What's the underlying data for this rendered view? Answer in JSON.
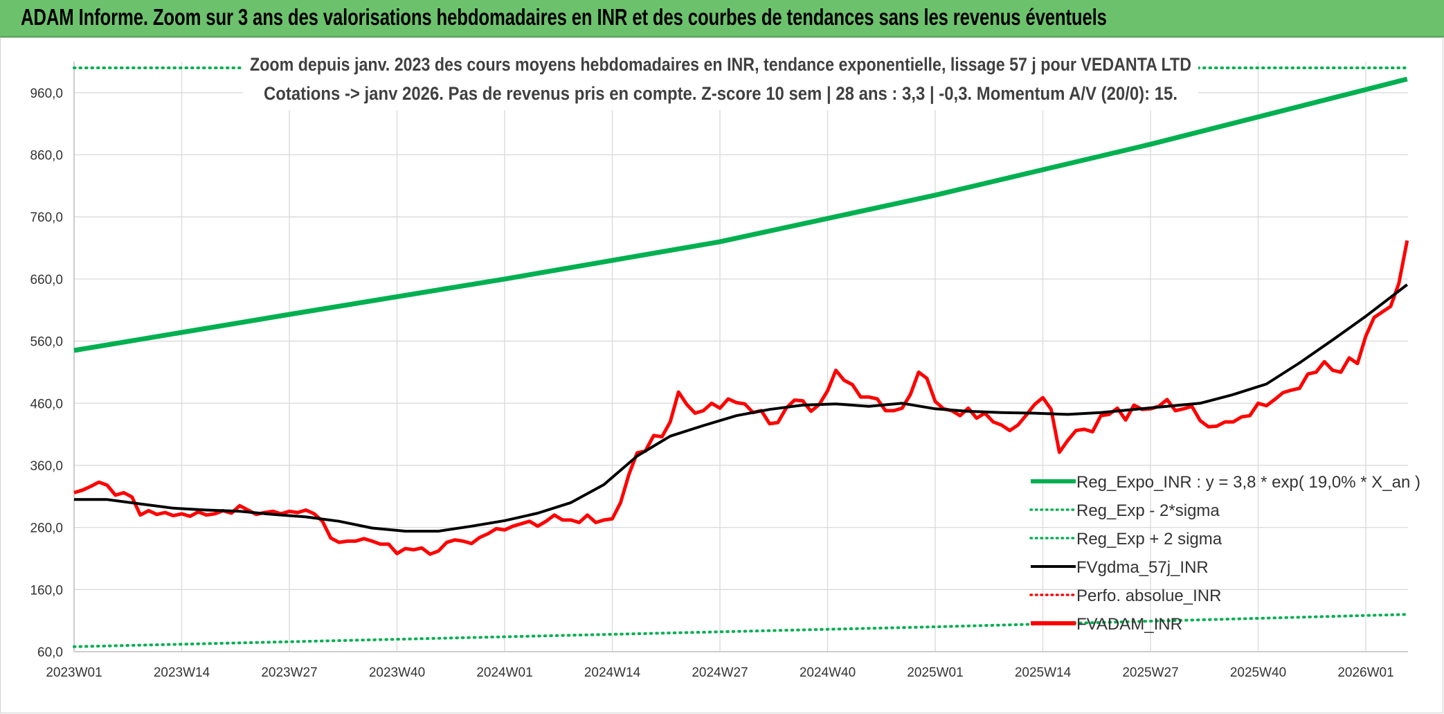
{
  "banner_title": "ADAM Informe. Zoom sur 3 ans des valorisations hebdomadaires en INR et des courbes de tendances sans les revenus éventuels",
  "chart_data": {
    "type": "line",
    "subtitle_line1": "Zoom depuis janv. 2023 des cours moyens hebdomadaires en INR, tendance exponentielle, lissage 57 j pour VEDANTA LTD",
    "subtitle_line2": "Cotations -> janv 2026. Pas de revenus pris en compte. Z-score 10 sem | 28 ans : 3,3 | -0,3. Momentum A/V (20/0): 15.",
    "xlabel": "",
    "ylabel": "",
    "ylim": [
      60,
      1010
    ],
    "y_ticks": [
      "60,0",
      "160,0",
      "260,0",
      "360,0",
      "460,0",
      "560,0",
      "660,0",
      "760,0",
      "860,0",
      "960,0"
    ],
    "y_tick_values": [
      60,
      160,
      260,
      360,
      460,
      560,
      660,
      760,
      860,
      960
    ],
    "x_ticks": [
      "2023W01",
      "2023W14",
      "2023W27",
      "2023W40",
      "2024W01",
      "2024W14",
      "2024W27",
      "2024W40",
      "2025W01",
      "2025W14",
      "2025W27",
      "2025W40",
      "2026W01"
    ],
    "x_tick_weeks": [
      0,
      13,
      26,
      39,
      52,
      65,
      78,
      91,
      104,
      117,
      130,
      143,
      156
    ],
    "x_range_weeks": [
      0,
      161
    ],
    "legend": [
      {
        "label": "Reg_Expo_INR : y = 3,8 * exp( 19,0% *  X_an )",
        "color": "#00b050",
        "style": "solid-thick"
      },
      {
        "label": "Reg_Exp - 2*sigma",
        "color": "#00b050",
        "style": "dotted"
      },
      {
        "label": "Reg_Exp + 2 sigma",
        "color": "#00b050",
        "style": "dotted"
      },
      {
        "label": "FVgdma_57j_INR",
        "color": "#000000",
        "style": "solid"
      },
      {
        "label": "Perfo. absolue_INR",
        "color": "#ff0000",
        "style": "dotted"
      },
      {
        "label": "FVADAM_INR",
        "color": "#ff0000",
        "style": "solid-thick"
      }
    ],
    "series": [
      {
        "name": "Reg_Expo_INR",
        "color": "#00b050",
        "points": [
          [
            0,
            545
          ],
          [
            26,
            603
          ],
          [
            52,
            660
          ],
          [
            78,
            720
          ],
          [
            104,
            795
          ],
          [
            130,
            877
          ],
          [
            156,
            965
          ],
          [
            161,
            982
          ]
        ]
      },
      {
        "name": "Reg_Exp - 2*sigma",
        "color": "#00b050",
        "points": [
          [
            0,
            68
          ],
          [
            52,
            84
          ],
          [
            104,
            100
          ],
          [
            161,
            120
          ]
        ]
      },
      {
        "name": "Reg_Exp + 2 sigma",
        "color": "#00b050",
        "points": [
          [
            0,
            1000
          ],
          [
            161,
            1000
          ]
        ]
      },
      {
        "name": "FVgdma_57j_INR",
        "color": "#000000",
        "points": [
          [
            0,
            305
          ],
          [
            4,
            305
          ],
          [
            8,
            298
          ],
          [
            12,
            291
          ],
          [
            16,
            288
          ],
          [
            20,
            286
          ],
          [
            24,
            281
          ],
          [
            28,
            277
          ],
          [
            32,
            270
          ],
          [
            36,
            259
          ],
          [
            40,
            254
          ],
          [
            44,
            254
          ],
          [
            48,
            262
          ],
          [
            52,
            271
          ],
          [
            56,
            283
          ],
          [
            60,
            300
          ],
          [
            64,
            329
          ],
          [
            68,
            375
          ],
          [
            72,
            407
          ],
          [
            76,
            424
          ],
          [
            80,
            440
          ],
          [
            84,
            450
          ],
          [
            88,
            457
          ],
          [
            92,
            459
          ],
          [
            96,
            455
          ],
          [
            100,
            460
          ],
          [
            104,
            451
          ],
          [
            108,
            447
          ],
          [
            112,
            445
          ],
          [
            116,
            444
          ],
          [
            120,
            442
          ],
          [
            124,
            445
          ],
          [
            128,
            450
          ],
          [
            132,
            455
          ],
          [
            136,
            460
          ],
          [
            140,
            474
          ],
          [
            144,
            491
          ],
          [
            148,
            525
          ],
          [
            152,
            562
          ],
          [
            156,
            600
          ],
          [
            161,
            651
          ]
        ]
      },
      {
        "name": "FVADAM_INR",
        "color": "#ff0000",
        "points": [
          [
            0,
            316
          ],
          [
            1,
            320
          ],
          [
            2,
            326
          ],
          [
            3,
            333
          ],
          [
            4,
            328
          ],
          [
            5,
            312
          ],
          [
            6,
            316
          ],
          [
            7,
            309
          ],
          [
            8,
            280
          ],
          [
            9,
            287
          ],
          [
            10,
            281
          ],
          [
            11,
            284
          ],
          [
            12,
            279
          ],
          [
            13,
            282
          ],
          [
            14,
            278
          ],
          [
            15,
            285
          ],
          [
            16,
            280
          ],
          [
            17,
            282
          ],
          [
            18,
            287
          ],
          [
            19,
            283
          ],
          [
            20,
            295
          ],
          [
            21,
            288
          ],
          [
            22,
            281
          ],
          [
            23,
            284
          ],
          [
            24,
            286
          ],
          [
            25,
            282
          ],
          [
            26,
            286
          ],
          [
            27,
            284
          ],
          [
            28,
            288
          ],
          [
            29,
            282
          ],
          [
            30,
            270
          ],
          [
            31,
            243
          ],
          [
            32,
            236
          ],
          [
            33,
            238
          ],
          [
            34,
            238
          ],
          [
            35,
            242
          ],
          [
            36,
            238
          ],
          [
            37,
            233
          ],
          [
            38,
            233
          ],
          [
            39,
            218
          ],
          [
            40,
            226
          ],
          [
            41,
            224
          ],
          [
            42,
            227
          ],
          [
            43,
            217
          ],
          [
            44,
            222
          ],
          [
            45,
            236
          ],
          [
            46,
            240
          ],
          [
            47,
            238
          ],
          [
            48,
            234
          ],
          [
            49,
            244
          ],
          [
            50,
            250
          ],
          [
            51,
            258
          ],
          [
            52,
            256
          ],
          [
            53,
            262
          ],
          [
            54,
            266
          ],
          [
            55,
            270
          ],
          [
            56,
            262
          ],
          [
            57,
            270
          ],
          [
            58,
            280
          ],
          [
            59,
            272
          ],
          [
            60,
            272
          ],
          [
            61,
            268
          ],
          [
            62,
            280
          ],
          [
            63,
            268
          ],
          [
            64,
            272
          ],
          [
            65,
            274
          ],
          [
            66,
            300
          ],
          [
            67,
            345
          ],
          [
            68,
            380
          ],
          [
            69,
            383
          ],
          [
            70,
            408
          ],
          [
            71,
            406
          ],
          [
            72,
            430
          ],
          [
            73,
            478
          ],
          [
            74,
            458
          ],
          [
            75,
            444
          ],
          [
            76,
            448
          ],
          [
            77,
            460
          ],
          [
            78,
            452
          ],
          [
            79,
            467
          ],
          [
            80,
            461
          ],
          [
            81,
            459
          ],
          [
            82,
            445
          ],
          [
            83,
            448
          ],
          [
            84,
            427
          ],
          [
            85,
            429
          ],
          [
            86,
            452
          ],
          [
            87,
            465
          ],
          [
            88,
            464
          ],
          [
            89,
            447
          ],
          [
            90,
            458
          ],
          [
            91,
            480
          ],
          [
            92,
            513
          ],
          [
            93,
            497
          ],
          [
            94,
            490
          ],
          [
            95,
            470
          ],
          [
            96,
            470
          ],
          [
            97,
            467
          ],
          [
            98,
            448
          ],
          [
            99,
            448
          ],
          [
            100,
            452
          ],
          [
            101,
            474
          ],
          [
            102,
            510
          ],
          [
            103,
            500
          ],
          [
            104,
            463
          ],
          [
            105,
            451
          ],
          [
            106,
            448
          ],
          [
            107,
            440
          ],
          [
            108,
            452
          ],
          [
            109,
            436
          ],
          [
            110,
            444
          ],
          [
            111,
            430
          ],
          [
            112,
            425
          ],
          [
            113,
            416
          ],
          [
            114,
            425
          ],
          [
            115,
            441
          ],
          [
            116,
            458
          ],
          [
            117,
            469
          ],
          [
            118,
            450
          ],
          [
            119,
            381
          ],
          [
            120,
            400
          ],
          [
            121,
            416
          ],
          [
            122,
            418
          ],
          [
            123,
            414
          ],
          [
            124,
            440
          ],
          [
            125,
            442
          ],
          [
            126,
            452
          ],
          [
            127,
            433
          ],
          [
            128,
            457
          ],
          [
            129,
            450
          ],
          [
            130,
            451
          ],
          [
            131,
            455
          ],
          [
            132,
            466
          ],
          [
            133,
            448
          ],
          [
            134,
            451
          ],
          [
            135,
            455
          ],
          [
            136,
            432
          ],
          [
            137,
            422
          ],
          [
            138,
            423
          ],
          [
            139,
            430
          ],
          [
            140,
            430
          ],
          [
            141,
            438
          ],
          [
            142,
            440
          ],
          [
            143,
            460
          ],
          [
            144,
            456
          ],
          [
            145,
            466
          ],
          [
            146,
            477
          ],
          [
            147,
            481
          ],
          [
            148,
            484
          ],
          [
            149,
            507
          ],
          [
            150,
            510
          ],
          [
            151,
            527
          ],
          [
            152,
            513
          ],
          [
            153,
            510
          ],
          [
            154,
            533
          ],
          [
            155,
            524
          ],
          [
            156,
            568
          ],
          [
            157,
            598
          ],
          [
            158,
            607
          ],
          [
            159,
            616
          ],
          [
            160,
            653
          ],
          [
            161,
            722
          ]
        ]
      }
    ]
  }
}
